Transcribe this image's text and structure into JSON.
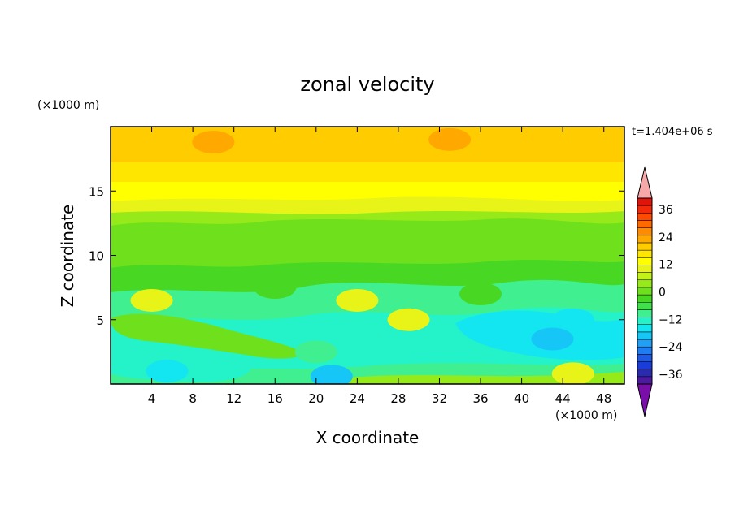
{
  "chart_data": {
    "type": "heatmap",
    "title": "zonal velocity",
    "xlabel": "X coordinate",
    "ylabel": "Z coordinate",
    "x_units": "(×1000 m)",
    "y_units": "(×1000 m)",
    "time_label": "t=1.404e+06 s",
    "xlim": [
      0,
      50
    ],
    "ylim": [
      0,
      20
    ],
    "x_ticks": [
      "4",
      "8",
      "12",
      "16",
      "20",
      "24",
      "28",
      "32",
      "36",
      "40",
      "44",
      "48"
    ],
    "y_ticks": [
      "5",
      "10",
      "15"
    ],
    "colorbar": {
      "levels": [
        -42,
        -39,
        -36,
        -33,
        -30,
        -27,
        -24,
        -21,
        -18,
        -15,
        -12,
        -9,
        -6,
        -3,
        0,
        3,
        6,
        9,
        12,
        15,
        18,
        21,
        24,
        27,
        30,
        33,
        36,
        39,
        42
      ],
      "tick_labels": [
        "36",
        "24",
        "12",
        "0",
        "−12",
        "−24",
        "−36"
      ],
      "colors": [
        "#7a0ea8",
        "#4b1a9e",
        "#2a2ab0",
        "#1a3cd8",
        "#1f5ae6",
        "#1e7df0",
        "#1fa0f5",
        "#15c6f6",
        "#13e6f0",
        "#24f2c8",
        "#40f090",
        "#3fe04a",
        "#48d824",
        "#6fe01c",
        "#96ea1a",
        "#c2f218",
        "#e8f418",
        "#ffff00",
        "#ffe600",
        "#ffcc00",
        "#ffa800",
        "#ff8c00",
        "#ff6a00",
        "#ff4a00",
        "#f22a0a",
        "#e0140a",
        "#f7a9a9"
      ],
      "extend": "both"
    },
    "regions": [
      {
        "x": 10,
        "z": 18.8,
        "u": 19
      },
      {
        "x": 33,
        "z": 19,
        "u": 20
      },
      {
        "x": 4,
        "z": 6.5,
        "u": 7
      },
      {
        "x": 24,
        "z": 6.5,
        "u": 8
      },
      {
        "x": 29,
        "z": 5,
        "u": 6
      },
      {
        "x": 45,
        "z": 5,
        "u": -18
      },
      {
        "x": 43,
        "z": 3.5,
        "u": -21
      },
      {
        "x": 21.5,
        "z": 0.6,
        "u": -21
      },
      {
        "x": 5.5,
        "z": 1,
        "u": -16
      },
      {
        "x": 20,
        "z": 2.5,
        "u": -11
      },
      {
        "x": 16,
        "z": 7.5,
        "u": -6
      },
      {
        "x": 36,
        "z": 7,
        "u": -6
      },
      {
        "x": 30,
        "z": 10.5,
        "u": -2
      },
      {
        "x": 45,
        "z": 0.8,
        "u": 7
      }
    ]
  }
}
